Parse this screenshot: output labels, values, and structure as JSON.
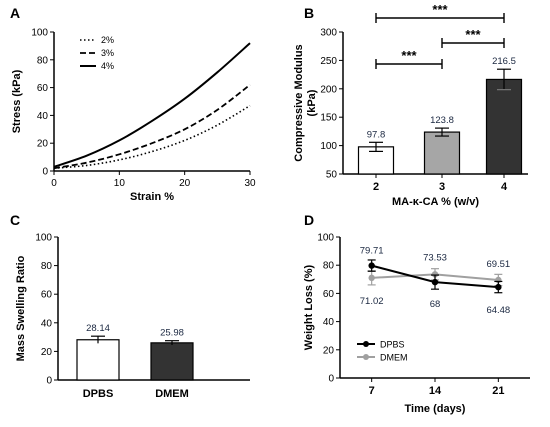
{
  "chart_data": [
    {
      "id": "A",
      "type": "line",
      "panel_label": "A",
      "xlabel": "Strain %",
      "ylabel": "Stress (kPa)",
      "xlim": [
        0,
        30
      ],
      "ylim": [
        0,
        100
      ],
      "x_ticks": [
        0,
        10,
        20,
        30
      ],
      "y_ticks": [
        0,
        20,
        40,
        60,
        80,
        100
      ],
      "legend_position": "top-left",
      "series": [
        {
          "name": "2%",
          "style": "dotted",
          "x": [
            0,
            5,
            10,
            15,
            20,
            25,
            30
          ],
          "y": [
            2,
            4,
            8,
            14,
            22,
            33,
            47
          ]
        },
        {
          "name": "3%",
          "style": "dashed",
          "x": [
            0,
            5,
            10,
            15,
            20,
            25,
            30
          ],
          "y": [
            2,
            6,
            12,
            20,
            30,
            44,
            62
          ]
        },
        {
          "name": "4%",
          "style": "solid",
          "x": [
            0,
            5,
            10,
            15,
            20,
            25,
            30
          ],
          "y": [
            3,
            11,
            22,
            36,
            52,
            71,
            92
          ]
        }
      ]
    },
    {
      "id": "B",
      "type": "bar",
      "panel_label": "B",
      "xlabel": "MA-κ-CA % (w/v)",
      "ylabel_lines": [
        "Compressive Modulus",
        "(kPa)"
      ],
      "categories": [
        "2",
        "3",
        "4"
      ],
      "values": [
        97.8,
        123.8,
        216.5
      ],
      "errors": [
        8,
        7,
        18
      ],
      "data_labels": [
        "97.8",
        "123.8",
        "216.5"
      ],
      "bar_colors": [
        "#ffffff",
        "#a6a6a6",
        "#333333"
      ],
      "ylim": [
        50,
        300
      ],
      "y_ticks": [
        50,
        100,
        150,
        200,
        250,
        300
      ],
      "significance": [
        {
          "from": 0,
          "to": 2,
          "label": "***",
          "y": 285
        },
        {
          "from": 0,
          "to": 1,
          "label": "***",
          "y": 230
        },
        {
          "from": 1,
          "to": 2,
          "label": "***",
          "y": 255
        }
      ]
    },
    {
      "id": "C",
      "type": "bar",
      "panel_label": "C",
      "xlabel": "",
      "ylabel": "Mass Swelling Ratio",
      "categories": [
        "DPBS",
        "DMEM"
      ],
      "values": [
        28.14,
        25.98
      ],
      "errors": [
        2.5,
        1.5
      ],
      "data_labels": [
        "28.14",
        "25.98"
      ],
      "bar_colors": [
        "#ffffff",
        "#333333"
      ],
      "ylim": [
        0,
        100
      ],
      "y_ticks": [
        0,
        20,
        40,
        60,
        80,
        100
      ]
    },
    {
      "id": "D",
      "type": "line",
      "panel_label": "D",
      "xlabel": "Time (days)",
      "ylabel": "Weight Loss (%)",
      "x": [
        7,
        14,
        21
      ],
      "x_ticks": [
        7,
        14,
        21
      ],
      "xlim": [
        3.5,
        24.5
      ],
      "ylim": [
        0,
        100
      ],
      "y_ticks": [
        0,
        20,
        40,
        60,
        80,
        100
      ],
      "legend_position": "bottom-left",
      "series": [
        {
          "name": "DPBS",
          "color": "#000000",
          "values": [
            79.71,
            68,
            64.48
          ],
          "errors": [
            4,
            5,
            4
          ],
          "data_labels": [
            "79.71",
            "68",
            "64.48"
          ]
        },
        {
          "name": "DMEM",
          "color": "#a0a0a0",
          "values": [
            71.02,
            73.53,
            69.51
          ],
          "errors": [
            5,
            4,
            4
          ],
          "data_labels": [
            "71.02",
            "73.53",
            "69.51"
          ]
        }
      ]
    }
  ]
}
